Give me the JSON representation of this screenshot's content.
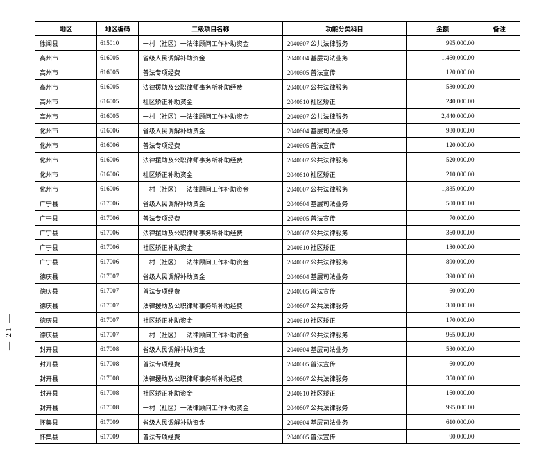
{
  "pageNumber": "— 21 —",
  "headers": {
    "region": "地区",
    "code": "地区编码",
    "project": "二级项目名称",
    "category": "功能分类科目",
    "amount": "金额",
    "remark": "备注"
  },
  "rows": [
    {
      "region": "徐闻县",
      "code": "615010",
      "project": "一村（社区）一法律顾问工作补助资金",
      "category": "2040607 公共法律服务",
      "amount": "995,000.00",
      "remark": ""
    },
    {
      "region": "高州市",
      "code": "616005",
      "project": "省级人民调解补助资金",
      "category": "2040604 基层司法业务",
      "amount": "1,460,000.00",
      "remark": ""
    },
    {
      "region": "高州市",
      "code": "616005",
      "project": "普法专项经费",
      "category": "2040605 普法宣传",
      "amount": "120,000.00",
      "remark": ""
    },
    {
      "region": "高州市",
      "code": "616005",
      "project": "法律援助及公职律师事务所补助经费",
      "category": "2040607 公共法律服务",
      "amount": "580,000.00",
      "remark": ""
    },
    {
      "region": "高州市",
      "code": "616005",
      "project": "社区矫正补助资金",
      "category": "2040610 社区矫正",
      "amount": "240,000.00",
      "remark": ""
    },
    {
      "region": "高州市",
      "code": "616005",
      "project": "一村（社区）一法律顾问工作补助资金",
      "category": "2040607 公共法律服务",
      "amount": "2,440,000.00",
      "remark": ""
    },
    {
      "region": "化州市",
      "code": "616006",
      "project": "省级人民调解补助资金",
      "category": "2040604 基层司法业务",
      "amount": "980,000.00",
      "remark": ""
    },
    {
      "region": "化州市",
      "code": "616006",
      "project": "普法专项经费",
      "category": "2040605 普法宣传",
      "amount": "120,000.00",
      "remark": ""
    },
    {
      "region": "化州市",
      "code": "616006",
      "project": "法律援助及公职律师事务所补助经费",
      "category": "2040607 公共法律服务",
      "amount": "520,000.00",
      "remark": ""
    },
    {
      "region": "化州市",
      "code": "616006",
      "project": "社区矫正补助资金",
      "category": "2040610 社区矫正",
      "amount": "210,000.00",
      "remark": ""
    },
    {
      "region": "化州市",
      "code": "616006",
      "project": "一村（社区）一法律顾问工作补助资金",
      "category": "2040607 公共法律服务",
      "amount": "1,835,000.00",
      "remark": ""
    },
    {
      "region": "广宁县",
      "code": "617006",
      "project": "省级人民调解补助资金",
      "category": "2040604 基层司法业务",
      "amount": "500,000.00",
      "remark": ""
    },
    {
      "region": "广宁县",
      "code": "617006",
      "project": "普法专项经费",
      "category": "2040605 普法宣传",
      "amount": "70,000.00",
      "remark": ""
    },
    {
      "region": "广宁县",
      "code": "617006",
      "project": "法律援助及公职律师事务所补助经费",
      "category": "2040607 公共法律服务",
      "amount": "360,000.00",
      "remark": ""
    },
    {
      "region": "广宁县",
      "code": "617006",
      "project": "社区矫正补助资金",
      "category": "2040610 社区矫正",
      "amount": "180,000.00",
      "remark": ""
    },
    {
      "region": "广宁县",
      "code": "617006",
      "project": "一村（社区）一法律顾问工作补助资金",
      "category": "2040607 公共法律服务",
      "amount": "890,000.00",
      "remark": ""
    },
    {
      "region": "德庆县",
      "code": "617007",
      "project": "省级人民调解补助资金",
      "category": "2040604 基层司法业务",
      "amount": "390,000.00",
      "remark": ""
    },
    {
      "region": "德庆县",
      "code": "617007",
      "project": "普法专项经费",
      "category": "2040605 普法宣传",
      "amount": "60,000.00",
      "remark": ""
    },
    {
      "region": "德庆县",
      "code": "617007",
      "project": "法律援助及公职律师事务所补助经费",
      "category": "2040607 公共法律服务",
      "amount": "300,000.00",
      "remark": ""
    },
    {
      "region": "德庆县",
      "code": "617007",
      "project": "社区矫正补助资金",
      "category": "2040610 社区矫正",
      "amount": "170,000.00",
      "remark": ""
    },
    {
      "region": "德庆县",
      "code": "617007",
      "project": "一村（社区）一法律顾问工作补助资金",
      "category": "2040607 公共法律服务",
      "amount": "965,000.00",
      "remark": ""
    },
    {
      "region": "封开县",
      "code": "617008",
      "project": "省级人民调解补助资金",
      "category": "2040604 基层司法业务",
      "amount": "530,000.00",
      "remark": ""
    },
    {
      "region": "封开县",
      "code": "617008",
      "project": "普法专项经费",
      "category": "2040605 普法宣传",
      "amount": "60,000.00",
      "remark": ""
    },
    {
      "region": "封开县",
      "code": "617008",
      "project": "法律援助及公职律师事务所补助经费",
      "category": "2040607 公共法律服务",
      "amount": "350,000.00",
      "remark": ""
    },
    {
      "region": "封开县",
      "code": "617008",
      "project": "社区矫正补助资金",
      "category": "2040610 社区矫正",
      "amount": "160,000.00",
      "remark": ""
    },
    {
      "region": "封开县",
      "code": "617008",
      "project": "一村（社区）一法律顾问工作补助资金",
      "category": "2040607 公共法律服务",
      "amount": "995,000.00",
      "remark": ""
    },
    {
      "region": "怀集县",
      "code": "617009",
      "project": "省级人民调解补助资金",
      "category": "2040604 基层司法业务",
      "amount": "610,000.00",
      "remark": ""
    },
    {
      "region": "怀集县",
      "code": "617009",
      "project": "普法专项经费",
      "category": "2040605 普法宣传",
      "amount": "90,000.00",
      "remark": ""
    }
  ]
}
